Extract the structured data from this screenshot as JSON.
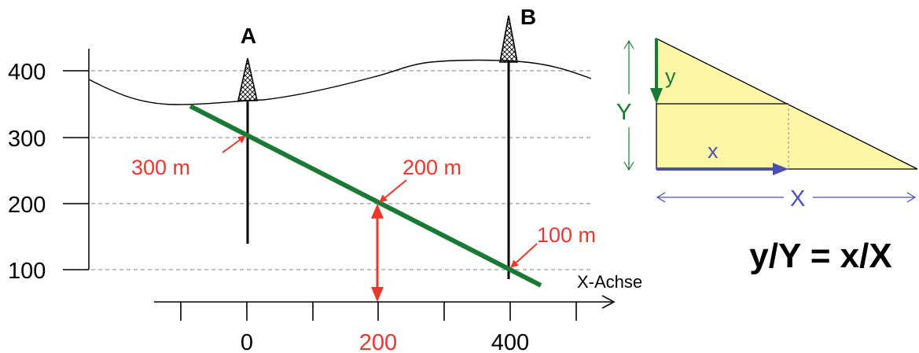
{
  "profile": {
    "y_ticks": [
      "400",
      "300",
      "200",
      "100"
    ],
    "x_ticks": [
      "0",
      "200",
      "400"
    ],
    "x_axis_label": "X-Achse",
    "well_a_label": "A",
    "well_b_label": "B",
    "depth_labels": [
      "300 m",
      "200 m",
      "100 m"
    ],
    "colors": {
      "line": "#1a7a35",
      "highlight": "#e8392e",
      "grid": "#9a9a9a",
      "axis": "#000000"
    }
  },
  "triangle": {
    "label_y_small": "y",
    "label_Y_big": "Y",
    "label_x_small": "x",
    "label_X_big": "X",
    "colors": {
      "fill": "#fdf6a6",
      "green": "#1a7a35",
      "blue": "#4a4fb0"
    }
  },
  "formula": "y/Y = x/X"
}
